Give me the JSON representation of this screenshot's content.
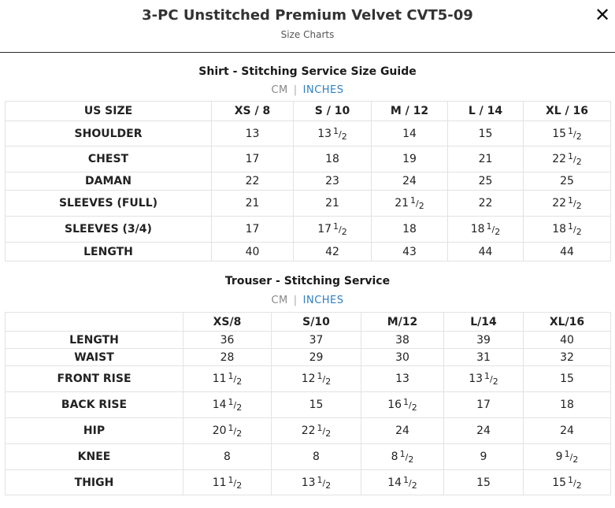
{
  "header": {
    "title": "3-PC Unstitched Premium Velvet CVT5-09",
    "subtitle": "Size Charts",
    "close_icon": "close-icon"
  },
  "shirt": {
    "title": "Shirt - Stitching Service Size Guide",
    "units": {
      "cm": "CM",
      "separator": "|",
      "inches": "INCHES",
      "selected": "INCHES"
    },
    "columns": [
      "US SIZE",
      "XS / 8",
      "S / 10",
      "M / 12",
      "L / 14",
      "XL / 16"
    ],
    "rows": [
      {
        "label": "SHOULDER",
        "values": [
          "13",
          "13 1/2",
          "14",
          "15",
          "15 1/2"
        ]
      },
      {
        "label": "CHEST",
        "values": [
          "17",
          "18",
          "19",
          "21",
          "22 1/2"
        ]
      },
      {
        "label": "DAMAN",
        "values": [
          "22",
          "23",
          "24",
          "25",
          "25"
        ]
      },
      {
        "label": "SLEEVES (FULL)",
        "values": [
          "21",
          "21",
          "21 1/2",
          "22",
          "22 1/2"
        ]
      },
      {
        "label": "SLEEVES (3/4)",
        "values": [
          "17",
          "17 1/2",
          "18",
          "18 1/2",
          "18 1/2"
        ]
      },
      {
        "label": "LENGTH",
        "values": [
          "40",
          "42",
          "43",
          "44",
          "44"
        ]
      }
    ]
  },
  "trouser": {
    "title": "Trouser - Stitching Service",
    "units": {
      "cm": "CM",
      "separator": "|",
      "inches": "INCHES",
      "selected": "INCHES"
    },
    "columns": [
      "",
      "XS/8",
      "S/10",
      "M/12",
      "L/14",
      "XL/16"
    ],
    "rows": [
      {
        "label": "LENGTH",
        "values": [
          "36",
          "37",
          "38",
          "39",
          "40"
        ]
      },
      {
        "label": "WAIST",
        "values": [
          "28",
          "29",
          "30",
          "31",
          "32"
        ]
      },
      {
        "label": "FRONT RISE",
        "values": [
          "11 1/2",
          "12 1/2",
          "13",
          "13 1/2",
          "15"
        ]
      },
      {
        "label": "BACK RISE",
        "values": [
          "14 1/2",
          "15",
          "16 1/2",
          "17",
          "18"
        ]
      },
      {
        "label": "HIP",
        "values": [
          "20 1/2",
          "22 1/2",
          "24",
          "24",
          "24"
        ]
      },
      {
        "label": "KNEE",
        "values": [
          "8",
          "8",
          "8 1/2",
          "9",
          "9 1/2"
        ]
      },
      {
        "label": "THIGH",
        "values": [
          "11 1/2",
          "13 1/2",
          "14 1/2",
          "15",
          "15 1/2"
        ]
      }
    ]
  }
}
